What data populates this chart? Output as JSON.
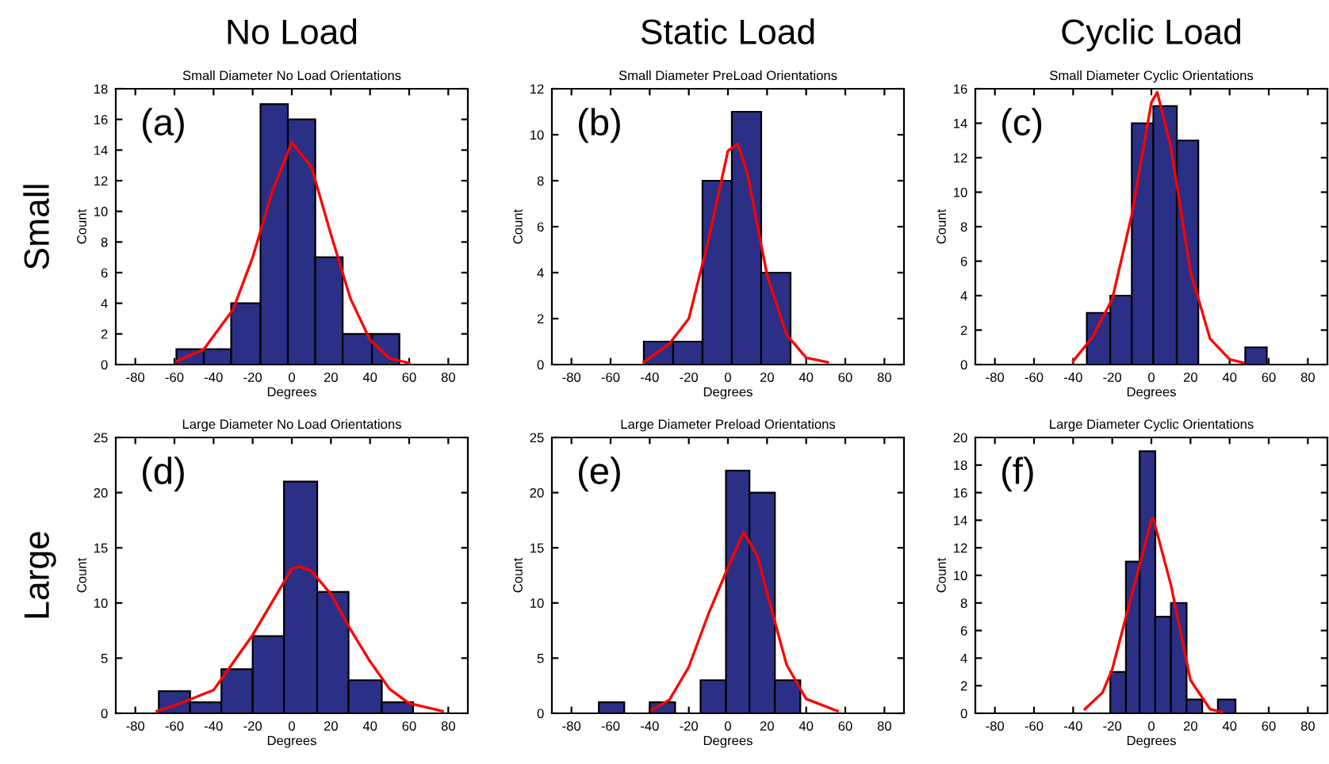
{
  "chart_data": [
    {
      "type": "histogram",
      "title": "Small Diameter No Load Orientations",
      "xlabel": "Degrees",
      "ylabel": "Count",
      "annotations": [
        "(a)",
        "No Load",
        "Small"
      ],
      "xlim": [
        -90,
        90
      ],
      "xticks": [
        -80,
        -60,
        -40,
        -20,
        0,
        20,
        40,
        60,
        80
      ],
      "ylim": [
        0,
        18
      ],
      "yticks": [
        0,
        2,
        4,
        6,
        8,
        10,
        12,
        14,
        16,
        18
      ],
      "grid": false,
      "series": [
        {
          "color": "#2b2f86",
          "bins": [
            -59,
            -45,
            -31,
            -16,
            -2,
            12,
            26,
            41,
            55
          ],
          "values": [
            1,
            1,
            4,
            17,
            16,
            7,
            2,
            2
          ]
        },
        {
          "type": "line",
          "color": "#ff0000",
          "x": [
            -59,
            -45,
            -30,
            -20,
            -10,
            0,
            10,
            20,
            30,
            40,
            50,
            60
          ],
          "values": [
            0.2,
            1.0,
            3.6,
            7.0,
            11.3,
            14.5,
            12.9,
            8.5,
            4.3,
            1.6,
            0.4,
            0.1
          ]
        }
      ]
    },
    {
      "type": "histogram",
      "title": "Small Diameter PreLoad Orientations",
      "xlabel": "Degrees",
      "ylabel": "Count",
      "annotations": [
        "(b)",
        "Static Load"
      ],
      "xlim": [
        -90,
        90
      ],
      "xticks": [
        -80,
        -60,
        -40,
        -20,
        0,
        20,
        40,
        60,
        80
      ],
      "ylim": [
        0,
        12
      ],
      "yticks": [
        0,
        2,
        4,
        6,
        8,
        10,
        12
      ],
      "grid": false,
      "series": [
        {
          "color": "#2b2f86",
          "bins": [
            -43,
            -28,
            -13,
            2,
            17,
            32
          ],
          "values": [
            1,
            1,
            8,
            11,
            4
          ]
        },
        {
          "type": "line",
          "color": "#ff0000",
          "x": [
            -43,
            -30,
            -20,
            -10,
            0,
            5,
            10,
            20,
            30,
            40,
            51
          ],
          "values": [
            0.1,
            0.9,
            2.0,
            5.4,
            9.3,
            9.6,
            8.3,
            3.9,
            1.3,
            0.3,
            0.1
          ]
        }
      ]
    },
    {
      "type": "histogram",
      "title": "Small Diameter Cyclic Orientations",
      "xlabel": "Degrees",
      "ylabel": "Count",
      "annotations": [
        "(c)",
        "Cyclic Load"
      ],
      "xlim": [
        -90,
        90
      ],
      "xticks": [
        -80,
        -60,
        -40,
        -20,
        0,
        20,
        40,
        60,
        80
      ],
      "ylim": [
        0,
        16
      ],
      "yticks": [
        0,
        2,
        4,
        6,
        8,
        10,
        12,
        14,
        16
      ],
      "grid": false,
      "series": [
        {
          "color": "#2b2f86",
          "bins": [
            -33,
            -21,
            -10,
            1,
            13,
            24,
            48,
            59
          ],
          "values": [
            3,
            4,
            14,
            15,
            13,
            0,
            1
          ]
        },
        {
          "type": "line",
          "color": "#ff0000",
          "x": [
            -40,
            -30,
            -20,
            -10,
            0,
            3,
            10,
            20,
            30,
            40,
            47
          ],
          "values": [
            0.2,
            1.6,
            3.8,
            8.7,
            15.2,
            15.8,
            12.6,
            5.4,
            1.5,
            0.3,
            0.1
          ]
        }
      ]
    },
    {
      "type": "histogram",
      "title": "Large Diameter No Load Orientations",
      "xlabel": "Degrees",
      "ylabel": "Count",
      "annotations": [
        "(d)",
        "Large"
      ],
      "xlim": [
        -90,
        90
      ],
      "xticks": [
        -80,
        -60,
        -40,
        -20,
        0,
        20,
        40,
        60,
        80
      ],
      "ylim": [
        0,
        25
      ],
      "yticks": [
        0,
        5,
        10,
        15,
        20,
        25
      ],
      "grid": false,
      "series": [
        {
          "color": "#2b2f86",
          "bins": [
            -68,
            -52,
            -36,
            -20,
            -4,
            13,
            29,
            46,
            62
          ],
          "values": [
            2,
            1,
            4,
            7,
            21,
            11,
            3,
            1
          ]
        },
        {
          "type": "line",
          "color": "#ff0000",
          "x": [
            -69,
            -60,
            -40,
            -20,
            -10,
            0,
            4,
            10,
            20,
            30,
            40,
            50,
            60,
            77
          ],
          "values": [
            0.2,
            0.7,
            2.1,
            7.1,
            10.1,
            13.1,
            13.3,
            12.9,
            10.8,
            7.6,
            4.7,
            2.2,
            0.9,
            0.2
          ]
        }
      ]
    },
    {
      "type": "histogram",
      "title": "Large Diameter Preload Orientations",
      "xlabel": "Degrees",
      "ylabel": "Count",
      "annotations": [
        "(e)"
      ],
      "xlim": [
        -90,
        90
      ],
      "xticks": [
        -80,
        -60,
        -40,
        -20,
        0,
        20,
        40,
        60,
        80
      ],
      "ylim": [
        0,
        25
      ],
      "yticks": [
        0,
        5,
        10,
        15,
        20,
        25
      ],
      "grid": false,
      "series": [
        {
          "color": "#2b2f86",
          "bins": [
            -66,
            -53,
            -40,
            -27,
            -14,
            -1,
            11,
            24,
            37
          ],
          "values": [
            1,
            0,
            1,
            0,
            3,
            22,
            20,
            3
          ]
        },
        {
          "type": "line",
          "color": "#ff0000",
          "x": [
            -39,
            -30,
            -20,
            -10,
            0,
            8,
            15,
            20,
            30,
            40,
            56
          ],
          "values": [
            0.3,
            1.2,
            4.2,
            9.0,
            13.2,
            16.4,
            14.3,
            10.9,
            4.4,
            1.3,
            0.2
          ]
        }
      ]
    },
    {
      "type": "histogram",
      "title": "Large Diameter Cyclic Orientations",
      "xlabel": "Degrees",
      "ylabel": "Count",
      "annotations": [
        "(f)"
      ],
      "xlim": [
        -90,
        90
      ],
      "xticks": [
        -80,
        -60,
        -40,
        -20,
        0,
        20,
        40,
        60,
        80
      ],
      "ylim": [
        0,
        20
      ],
      "yticks": [
        0,
        2,
        4,
        6,
        8,
        10,
        12,
        14,
        16,
        18,
        20
      ],
      "grid": false,
      "series": [
        {
          "color": "#2b2f86",
          "bins": [
            -21,
            -13,
            -6,
            2,
            10,
            18,
            26,
            34,
            43
          ],
          "values": [
            3,
            11,
            19,
            7,
            8,
            1,
            0,
            1
          ]
        },
        {
          "type": "line",
          "color": "#ff0000",
          "x": [
            -34,
            -25,
            -20,
            -10,
            0,
            1,
            10,
            20,
            30,
            36
          ],
          "values": [
            0.3,
            1.5,
            3.2,
            8.6,
            14.0,
            14.1,
            9.3,
            2.4,
            0.3,
            0.1
          ]
        }
      ]
    }
  ]
}
